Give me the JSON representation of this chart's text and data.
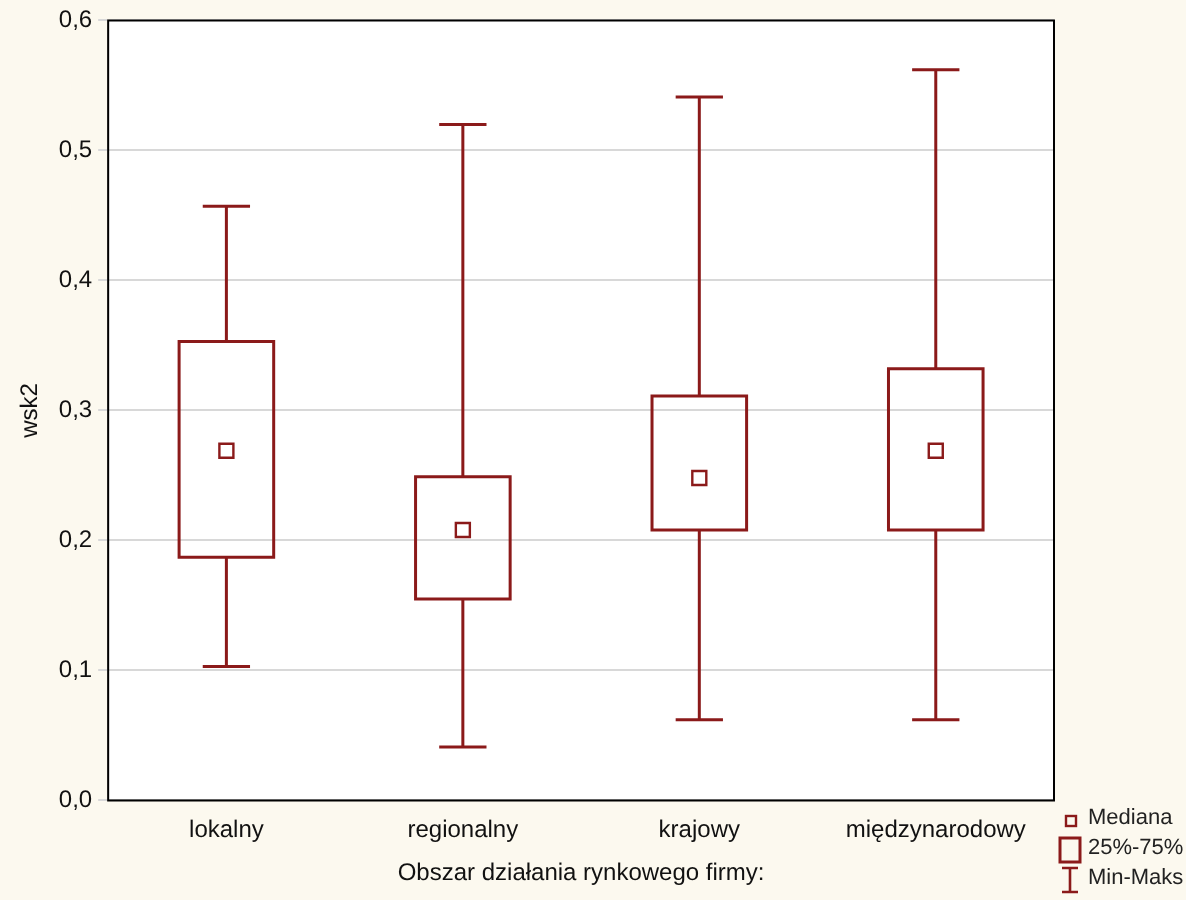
{
  "chart_data": {
    "type": "box",
    "xlabel": "Obszar działania rynkowego firmy:",
    "ylabel": "wsk2",
    "categories": [
      "lokalny",
      "regionalny",
      "krajowy",
      "międzynarodowy"
    ],
    "color": "#8b1a1a",
    "marker": "square",
    "grid": "y",
    "ylim": [
      0,
      0.6
    ],
    "yticks": [
      {
        "value": 0,
        "label": "0,0"
      },
      {
        "value": 0.1,
        "label": "0,1"
      },
      {
        "value": 0.2,
        "label": "0,2"
      },
      {
        "value": 0.3,
        "label": "0,3"
      },
      {
        "value": 0.4,
        "label": "0,4"
      },
      {
        "value": 0.5,
        "label": "0,5"
      },
      {
        "value": 0.6,
        "label": "0,6"
      }
    ],
    "boxes": [
      {
        "low": 0.103,
        "q1": 0.187,
        "median": 0.269,
        "q3": 0.353,
        "high": 0.457
      },
      {
        "low": 0.041,
        "q1": 0.155,
        "median": 0.208,
        "q3": 0.249,
        "high": 0.52
      },
      {
        "low": 0.062,
        "q1": 0.208,
        "median": 0.248,
        "q3": 0.311,
        "high": 0.541
      },
      {
        "low": 0.062,
        "q1": 0.208,
        "median": 0.269,
        "q3": 0.332,
        "high": 0.562
      }
    ],
    "annotations": [
      "Mediana",
      "25%-75%",
      "Min-Maks"
    ]
  }
}
